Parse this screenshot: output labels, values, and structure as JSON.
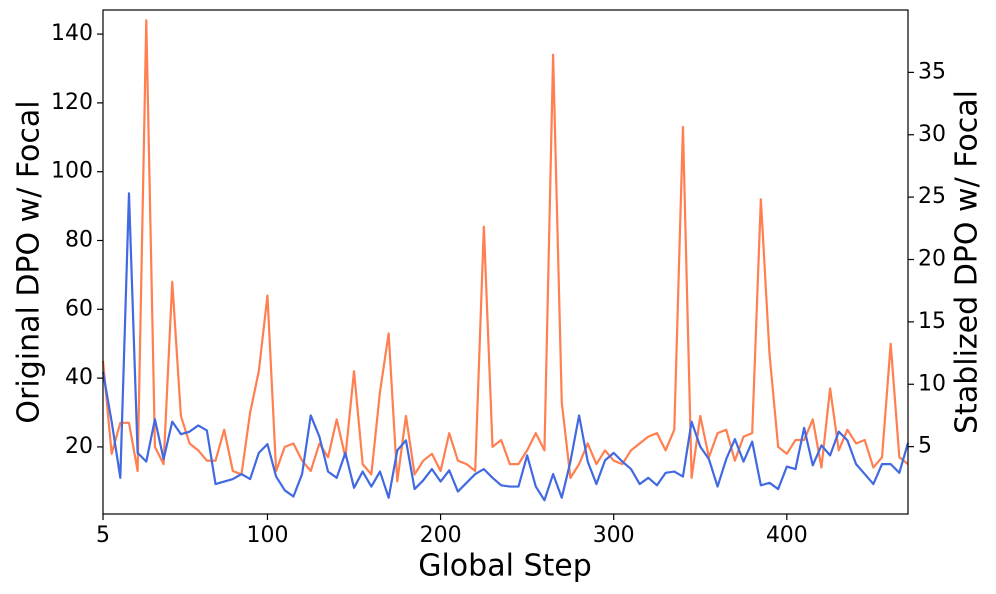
{
  "chart_data": {
    "type": "line",
    "xlabel": "Global Step",
    "ylabel": "Original DPO w/ Focal",
    "y2label": "Stablized DPO w/ Focal",
    "x": [
      5,
      10,
      15,
      20,
      25,
      30,
      35,
      40,
      45,
      50,
      55,
      60,
      65,
      70,
      75,
      80,
      85,
      90,
      95,
      100,
      105,
      110,
      115,
      120,
      125,
      130,
      135,
      140,
      145,
      150,
      155,
      160,
      165,
      170,
      175,
      180,
      185,
      190,
      195,
      200,
      205,
      210,
      215,
      220,
      225,
      230,
      235,
      240,
      245,
      250,
      255,
      260,
      265,
      270,
      275,
      280,
      285,
      290,
      295,
      300,
      305,
      310,
      315,
      320,
      325,
      330,
      335,
      340,
      345,
      350,
      355,
      360,
      365,
      370,
      375,
      380,
      385,
      390,
      395,
      400,
      405,
      410,
      415,
      420,
      425,
      430,
      435,
      440,
      445,
      450,
      455,
      460,
      465,
      470
    ],
    "series": [
      {
        "name": "Original DPO w/ Focal",
        "color": "#ff7f50",
        "axis": "y",
        "values": [
          45,
          18,
          27,
          27,
          13,
          144,
          20,
          15,
          68,
          29,
          21,
          19,
          16,
          16,
          25,
          13,
          12,
          30,
          42,
          64,
          13,
          20,
          21,
          16,
          13,
          21,
          17,
          28,
          17,
          42,
          15,
          12,
          36,
          53,
          10,
          29,
          12,
          16,
          18,
          13,
          24,
          16,
          15,
          13,
          84,
          20,
          22,
          15,
          15,
          19,
          24,
          19,
          134,
          33,
          11,
          15,
          21,
          15,
          19,
          16,
          15,
          19,
          21,
          23,
          24,
          19,
          25,
          113,
          11,
          29,
          17,
          24,
          25,
          16,
          23,
          24,
          92,
          47,
          20,
          18,
          22,
          22,
          28,
          14,
          37,
          19,
          25,
          21,
          22,
          14,
          17,
          50,
          17,
          15
        ]
      },
      {
        "name": "Stablized DPO w/ Focal",
        "color": "#4169e1",
        "axis": "y2",
        "values": [
          11,
          7,
          2.5,
          25.3,
          4.5,
          3.8,
          7.2,
          4,
          7,
          6,
          6.2,
          6.7,
          6.3,
          2,
          2.2,
          2.4,
          2.8,
          2.4,
          4.5,
          5.2,
          2.6,
          1.5,
          1,
          2.8,
          7.5,
          5.8,
          3,
          2.5,
          4.5,
          1.7,
          3,
          1.8,
          3,
          0.9,
          4.7,
          5.5,
          1.6,
          2.3,
          3.2,
          2.2,
          3.1,
          1.4,
          2.1,
          2.8,
          3.2,
          2.5,
          1.9,
          1.8,
          1.8,
          4.3,
          1.8,
          0.7,
          2.8,
          0.9,
          3.8,
          7.5,
          3.8,
          2,
          3.9,
          4.5,
          3.8,
          3.2,
          2,
          2.5,
          1.9,
          2.9,
          3,
          2.6,
          7,
          5,
          4,
          1.8,
          4,
          5.6,
          3.8,
          5.4,
          1.9,
          2.1,
          1.6,
          3.4,
          3.2,
          6.5,
          3.5,
          5.1,
          4.3,
          6.2,
          5.5,
          3.6,
          2.8,
          2,
          3.6,
          3.6,
          2.9,
          5.3
        ]
      }
    ],
    "xlim": [
      5,
      470
    ],
    "xticks": [
      5,
      100,
      200,
      300,
      400
    ],
    "ylim": [
      0.5,
      147
    ],
    "yticks": [
      20,
      40,
      60,
      80,
      100,
      120,
      140
    ],
    "y2lim": [
      -0.4,
      40
    ],
    "y2ticks": [
      5,
      10,
      15,
      20,
      25,
      30,
      35
    ],
    "grid": false
  }
}
